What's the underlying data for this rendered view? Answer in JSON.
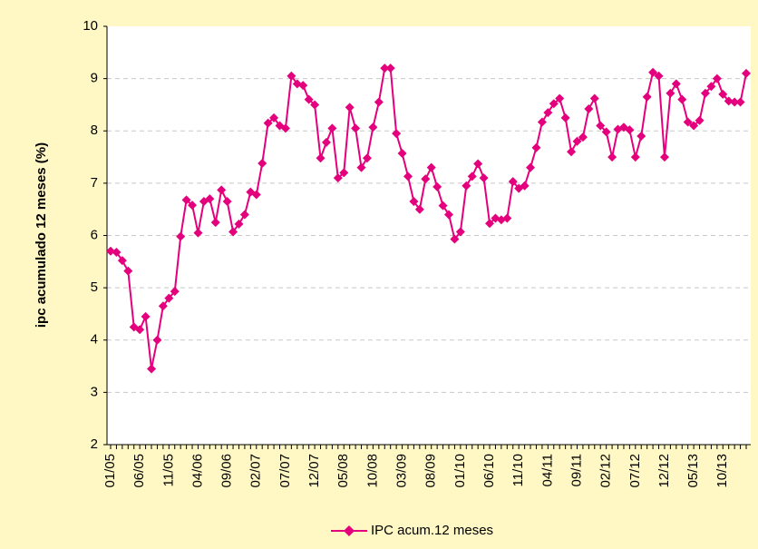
{
  "chart_data": {
    "type": "line",
    "ylabel": "ipc acumulado 12 meses (%)",
    "categories": [
      "01/05",
      null,
      null,
      null,
      null,
      "06/05",
      null,
      null,
      null,
      null,
      "11/05",
      null,
      null,
      null,
      null,
      "04/06",
      null,
      null,
      null,
      null,
      "09/06",
      null,
      null,
      null,
      null,
      "02/07",
      null,
      null,
      null,
      null,
      "07/07",
      null,
      null,
      null,
      null,
      "12/07",
      null,
      null,
      null,
      null,
      "05/08",
      null,
      null,
      null,
      null,
      "10/08",
      null,
      null,
      null,
      null,
      "03/09",
      null,
      null,
      null,
      null,
      "08/09",
      null,
      null,
      null,
      null,
      "01/10",
      null,
      null,
      null,
      null,
      "06/10",
      null,
      null,
      null,
      null,
      "11/10",
      null,
      null,
      null,
      null,
      "04/11",
      null,
      null,
      null,
      null,
      "09/11",
      null,
      null,
      null,
      null,
      "02/12",
      null,
      null,
      null,
      null,
      "07/12",
      null,
      null,
      null,
      null,
      "12/12",
      null,
      null,
      null,
      null,
      "05/13",
      null,
      null,
      null,
      null,
      "10/13",
      null,
      null,
      null,
      null
    ],
    "series": [
      {
        "name": "IPC acum.12 meses",
        "color": "#e4007c",
        "values": [
          5.7,
          5.68,
          5.52,
          5.32,
          4.25,
          4.2,
          4.45,
          3.45,
          4.0,
          4.65,
          4.8,
          4.93,
          5.98,
          6.68,
          6.58,
          6.05,
          6.65,
          6.7,
          6.25,
          6.87,
          6.65,
          6.07,
          6.22,
          6.4,
          6.83,
          6.78,
          7.38,
          8.15,
          8.25,
          8.1,
          8.05,
          9.05,
          8.9,
          8.87,
          8.6,
          8.5,
          7.48,
          7.78,
          8.05,
          7.1,
          7.2,
          8.45,
          8.05,
          7.3,
          7.48,
          8.07,
          8.55,
          9.2,
          9.2,
          7.95,
          7.57,
          7.13,
          6.65,
          6.5,
          7.08,
          7.3,
          6.93,
          6.57,
          6.4,
          5.93,
          6.07,
          6.95,
          7.13,
          7.37,
          7.1,
          6.23,
          6.33,
          6.3,
          6.33,
          7.03,
          6.9,
          6.95,
          7.3,
          7.68,
          8.17,
          8.35,
          8.52,
          8.62,
          8.25,
          7.6,
          7.8,
          7.88,
          8.42,
          8.62,
          8.1,
          7.98,
          7.5,
          8.03,
          8.07,
          8.02,
          7.5,
          7.9,
          8.65,
          9.12,
          9.05,
          7.5,
          8.72,
          8.9,
          8.6,
          8.17,
          8.1,
          8.2,
          8.72,
          8.85,
          9.0,
          8.7,
          8.57,
          8.55,
          8.55,
          9.1
        ]
      }
    ],
    "ylim": [
      2,
      10
    ],
    "yticks": [
      2,
      3,
      4,
      5,
      6,
      7,
      8,
      9,
      10
    ],
    "grid": true,
    "legend": "bottom"
  }
}
